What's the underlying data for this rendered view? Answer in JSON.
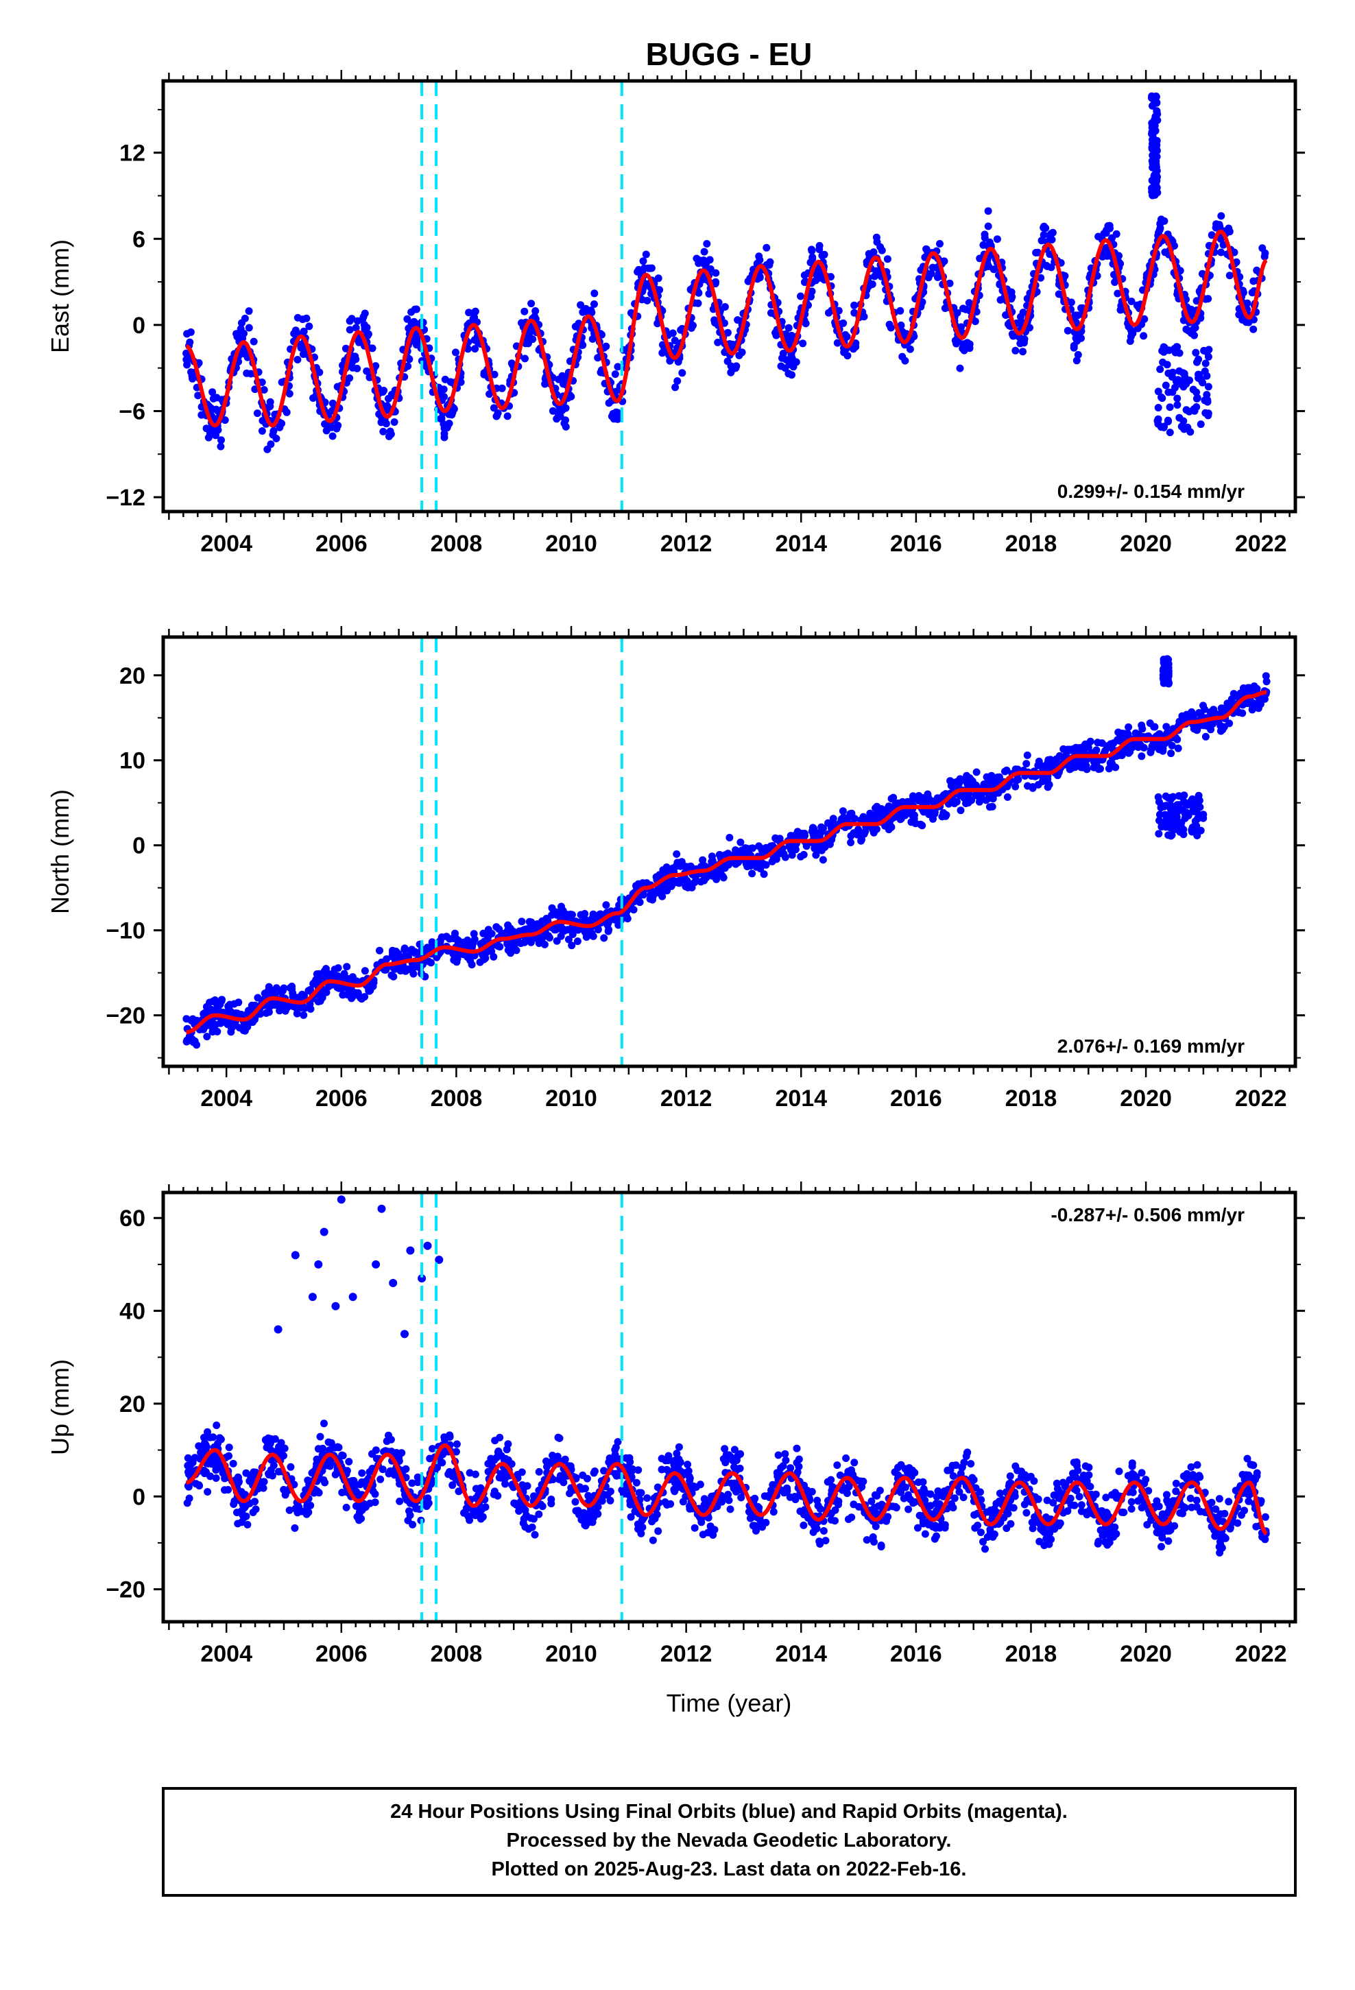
{
  "chart_data": {
    "type": "scatter",
    "title": "BUGG - EU",
    "xlabel": "Time (year)",
    "xlim": [
      2002.9,
      2022.6
    ],
    "x_ticks": [
      "2004",
      "2006",
      "2008",
      "2010",
      "2012",
      "2014",
      "2016",
      "2018",
      "2020",
      "2022"
    ],
    "event_lines_year": [
      2007.4,
      2007.65,
      2010.88
    ],
    "series_colors": {
      "positions": "#0000ff",
      "model": "#ff0000",
      "events": "#00e5ff"
    },
    "panels": [
      {
        "ylabel": "East (mm)",
        "ylim": [
          -13,
          17
        ],
        "y_ticks": [
          "12",
          "6",
          "0",
          "−6",
          "−12"
        ],
        "rate": "0.299+/- 0.154 mm/yr",
        "model": {
          "x": [
            2003.3,
            2003.8,
            2004.3,
            2004.8,
            2005.3,
            2005.8,
            2006.3,
            2006.8,
            2007.3,
            2007.8,
            2008.3,
            2008.8,
            2009.3,
            2009.8,
            2010.3,
            2010.8,
            2011.3,
            2011.8,
            2012.3,
            2012.8,
            2013.3,
            2013.8,
            2014.3,
            2014.8,
            2015.3,
            2015.8,
            2016.3,
            2016.8,
            2017.3,
            2017.8,
            2018.3,
            2018.8,
            2019.3,
            2019.8,
            2020.3,
            2020.8,
            2021.3,
            2021.8,
            2022.1
          ],
          "y": [
            -1.5,
            -7,
            -1.2,
            -7,
            -0.8,
            -6.7,
            -0.5,
            -6.4,
            -0.2,
            -6,
            0,
            -5.8,
            0.3,
            -5.5,
            0.6,
            -5.3,
            3.5,
            -2.3,
            3.8,
            -2,
            4.1,
            -1.8,
            4.4,
            -1.5,
            4.7,
            -1.2,
            5,
            -0.9,
            5.3,
            -0.6,
            5.6,
            -0.3,
            5.9,
            0,
            6.2,
            0.2,
            6.5,
            0.5,
            4.5
          ]
        },
        "outlier_clusters": [
          {
            "x": [
              2020.1,
              2020.2
            ],
            "y": [
              9,
              16
            ]
          },
          {
            "x": [
              2020.2,
              2021.1
            ],
            "y": [
              -7.5,
              -1.5
            ]
          }
        ]
      },
      {
        "ylabel": "North (mm)",
        "ylim": [
          -26,
          24.5
        ],
        "y_ticks": [
          "20",
          "10",
          "0",
          "−10",
          "−20"
        ],
        "rate": "2.076+/- 0.169 mm/yr",
        "model": {
          "x": [
            2003.3,
            2003.8,
            2004.3,
            2004.8,
            2005.3,
            2005.8,
            2006.3,
            2006.8,
            2007.3,
            2007.8,
            2008.3,
            2008.8,
            2009.3,
            2009.8,
            2010.3,
            2010.8,
            2011.3,
            2011.8,
            2012.3,
            2012.8,
            2013.3,
            2013.8,
            2014.3,
            2014.8,
            2015.3,
            2015.8,
            2016.3,
            2016.8,
            2017.3,
            2017.8,
            2018.3,
            2018.8,
            2019.3,
            2019.8,
            2020.3,
            2020.8,
            2021.3,
            2021.8,
            2022.1
          ],
          "y": [
            -22,
            -20,
            -20.5,
            -18,
            -18.5,
            -16,
            -16.5,
            -14,
            -13.5,
            -12,
            -12.5,
            -11,
            -10.5,
            -9,
            -9.5,
            -8,
            -5,
            -3.5,
            -3,
            -1.5,
            -1.5,
            0.5,
            0.5,
            2.5,
            2.5,
            4.5,
            4.5,
            6.5,
            6.5,
            8.5,
            8.5,
            10.5,
            10.5,
            12.5,
            12.5,
            14.5,
            15,
            17.5,
            18
          ]
        },
        "outlier_clusters": [
          {
            "x": [
              2020.2,
              2021.0
            ],
            "y": [
              1,
              6
            ]
          },
          {
            "x": [
              2020.3,
              2020.4
            ],
            "y": [
              19,
              22
            ]
          }
        ]
      },
      {
        "ylabel": "Up (mm)",
        "ylim": [
          -27,
          65.5
        ],
        "y_ticks": [
          "60",
          "40",
          "20",
          "0",
          "−20"
        ],
        "rate": "-0.287+/- 0.506 mm/yr",
        "model": {
          "x": [
            2003.3,
            2003.8,
            2004.3,
            2004.8,
            2005.3,
            2005.8,
            2006.3,
            2006.8,
            2007.3,
            2007.8,
            2008.3,
            2008.8,
            2009.3,
            2009.8,
            2010.3,
            2010.8,
            2011.3,
            2011.8,
            2012.3,
            2012.8,
            2013.3,
            2013.8,
            2014.3,
            2014.8,
            2015.3,
            2015.8,
            2016.3,
            2016.8,
            2017.3,
            2017.8,
            2018.3,
            2018.8,
            2019.3,
            2019.8,
            2020.3,
            2020.8,
            2021.3,
            2021.8,
            2022.1
          ],
          "y": [
            3,
            10,
            -1,
            9,
            -1,
            9,
            -1,
            9,
            -1,
            11,
            -2,
            7,
            -2,
            7,
            -2,
            7,
            -4,
            5,
            -4,
            5,
            -4,
            5,
            -5,
            4,
            -5,
            4,
            -5,
            4,
            -6,
            3,
            -6,
            3,
            -6,
            3,
            -6,
            3,
            -7,
            3,
            -8
          ]
        },
        "outlier_points": {
          "x": [
            2004.9,
            2005.2,
            2005.5,
            2005.6,
            2005.7,
            2005.9,
            2006.0,
            2006.2,
            2006.6,
            2006.7,
            2006.9,
            2007.1,
            2007.2,
            2007.4,
            2007.5,
            2007.7
          ],
          "y": [
            36,
            52,
            43,
            50,
            57,
            41,
            64,
            43,
            50,
            62,
            46,
            35,
            53,
            47,
            54,
            51
          ]
        }
      }
    ],
    "footer": [
      "24 Hour Positions Using Final Orbits (blue) and Rapid Orbits (magenta).",
      "Processed by the Nevada Geodetic Laboratory.",
      "Plotted on 2025-Aug-23. Last data on 2022-Feb-16."
    ]
  }
}
